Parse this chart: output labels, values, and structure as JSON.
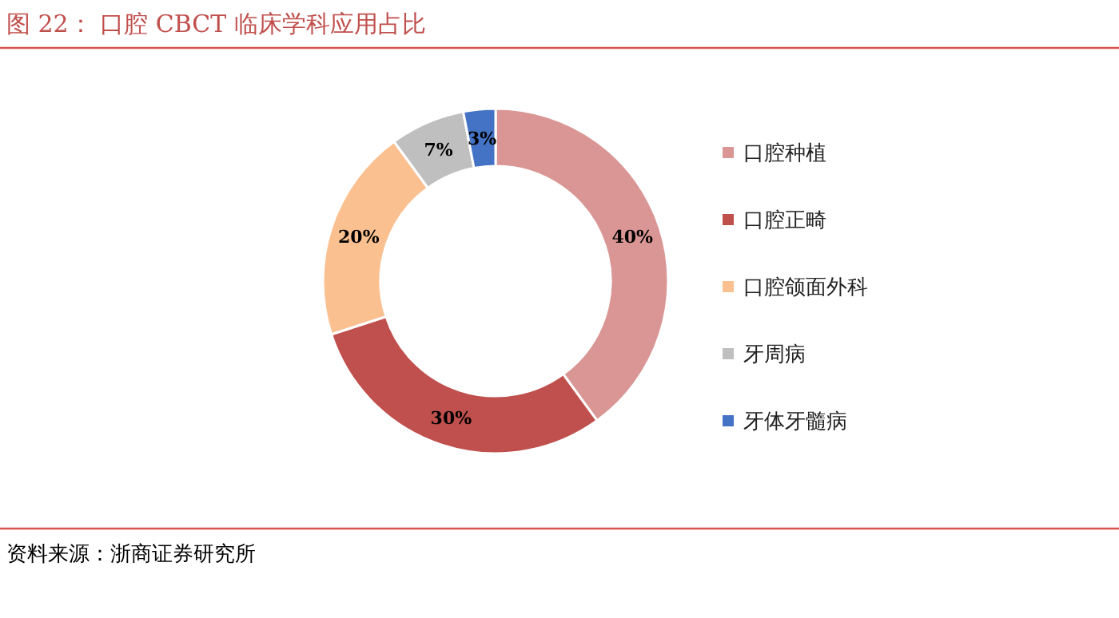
{
  "chart_data": {
    "type": "donut",
    "title": "图 22：  口腔 CBCT 临床学科应用占比",
    "categories": [
      "口腔种植",
      "口腔正畸",
      "口腔颌面外科",
      "牙周病",
      "牙体牙髓病"
    ],
    "values": [
      40,
      30,
      20,
      7,
      3
    ],
    "value_labels": [
      "40%",
      "30%",
      "20%",
      "7%",
      "3%"
    ],
    "colors": [
      "#d99694",
      "#c0504d",
      "#fac090",
      "#bfbfbf",
      "#4472c4"
    ],
    "legend": "right",
    "annotations": [
      "资料来源：浙商证券研究所"
    ]
  }
}
